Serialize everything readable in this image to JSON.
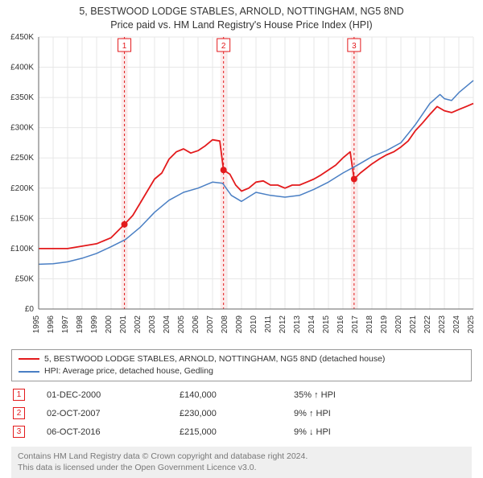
{
  "title": {
    "line1": "5, BESTWOOD LODGE STABLES, ARNOLD, NOTTINGHAM, NG5 8ND",
    "line2": "Price paid vs. HM Land Registry's House Price Index (HPI)"
  },
  "chart": {
    "type": "line",
    "background_color": "#ffffff",
    "plot_bg": "#ffffff",
    "grid_color": "#e7e7e7",
    "axis_color": "#666666",
    "tick_color": "#333333",
    "tick_fontsize": 10,
    "x": {
      "min": 1995,
      "max": 2025,
      "ticks": [
        1995,
        1996,
        1997,
        1998,
        1999,
        2000,
        2001,
        2002,
        2003,
        2004,
        2005,
        2006,
        2007,
        2008,
        2009,
        2010,
        2011,
        2012,
        2013,
        2014,
        2015,
        2016,
        2017,
        2018,
        2019,
        2020,
        2021,
        2022,
        2023,
        2024,
        2025
      ]
    },
    "y": {
      "min": 0,
      "max": 450000,
      "ticks": [
        0,
        50000,
        100000,
        150000,
        200000,
        250000,
        300000,
        350000,
        400000,
        450000
      ],
      "tick_labels": [
        "£0",
        "£50K",
        "£100K",
        "£150K",
        "£200K",
        "£250K",
        "£300K",
        "£350K",
        "£400K",
        "£450K"
      ]
    },
    "series": [
      {
        "name": "red",
        "color": "#e31a1c",
        "width": 1.8,
        "points": [
          [
            1995,
            100000
          ],
          [
            1996,
            100000
          ],
          [
            1997,
            100000
          ],
          [
            1998,
            104000
          ],
          [
            1999,
            108000
          ],
          [
            2000,
            118000
          ],
          [
            2000.92,
            140000
          ],
          [
            2001.5,
            155000
          ],
          [
            2002,
            175000
          ],
          [
            2002.5,
            195000
          ],
          [
            2003,
            215000
          ],
          [
            2003.5,
            225000
          ],
          [
            2004,
            248000
          ],
          [
            2004.5,
            260000
          ],
          [
            2005,
            265000
          ],
          [
            2005.5,
            258000
          ],
          [
            2006,
            262000
          ],
          [
            2006.5,
            270000
          ],
          [
            2007,
            280000
          ],
          [
            2007.5,
            278000
          ],
          [
            2007.76,
            230000
          ],
          [
            2008.2,
            223000
          ],
          [
            2008.6,
            205000
          ],
          [
            2009,
            195000
          ],
          [
            2009.5,
            200000
          ],
          [
            2010,
            210000
          ],
          [
            2010.5,
            212000
          ],
          [
            2011,
            205000
          ],
          [
            2011.5,
            205000
          ],
          [
            2012,
            200000
          ],
          [
            2012.5,
            205000
          ],
          [
            2013,
            205000
          ],
          [
            2013.5,
            210000
          ],
          [
            2014,
            215000
          ],
          [
            2014.5,
            222000
          ],
          [
            2015,
            230000
          ],
          [
            2015.5,
            238000
          ],
          [
            2016,
            250000
          ],
          [
            2016.5,
            260000
          ],
          [
            2016.77,
            215000
          ],
          [
            2017.2,
            225000
          ],
          [
            2018,
            240000
          ],
          [
            2018.5,
            248000
          ],
          [
            2019,
            255000
          ],
          [
            2019.5,
            260000
          ],
          [
            2020,
            268000
          ],
          [
            2020.5,
            278000
          ],
          [
            2021,
            295000
          ],
          [
            2021.5,
            308000
          ],
          [
            2022,
            322000
          ],
          [
            2022.5,
            335000
          ],
          [
            2023,
            328000
          ],
          [
            2023.5,
            325000
          ],
          [
            2024,
            330000
          ],
          [
            2024.5,
            335000
          ],
          [
            2025,
            340000
          ]
        ]
      },
      {
        "name": "blue",
        "color": "#4a7fc4",
        "width": 1.5,
        "points": [
          [
            1995,
            74000
          ],
          [
            1996,
            75000
          ],
          [
            1997,
            78000
          ],
          [
            1998,
            84000
          ],
          [
            1999,
            92000
          ],
          [
            2000,
            103000
          ],
          [
            2001,
            115000
          ],
          [
            2002,
            135000
          ],
          [
            2003,
            160000
          ],
          [
            2004,
            180000
          ],
          [
            2005,
            193000
          ],
          [
            2006,
            200000
          ],
          [
            2007,
            210000
          ],
          [
            2007.7,
            208000
          ],
          [
            2008.3,
            188000
          ],
          [
            2009,
            178000
          ],
          [
            2010,
            193000
          ],
          [
            2011,
            188000
          ],
          [
            2012,
            185000
          ],
          [
            2013,
            188000
          ],
          [
            2014,
            198000
          ],
          [
            2015,
            210000
          ],
          [
            2016,
            225000
          ],
          [
            2017,
            238000
          ],
          [
            2018,
            252000
          ],
          [
            2019,
            262000
          ],
          [
            2020,
            275000
          ],
          [
            2021,
            305000
          ],
          [
            2022,
            340000
          ],
          [
            2022.7,
            355000
          ],
          [
            2023,
            348000
          ],
          [
            2023.5,
            345000
          ],
          [
            2024,
            358000
          ],
          [
            2024.5,
            368000
          ],
          [
            2025,
            378000
          ]
        ]
      }
    ],
    "markers": [
      {
        "n": 1,
        "x": 2000.92,
        "y": 140000,
        "color": "#e31a1c",
        "band_color": "#fbe1e1"
      },
      {
        "n": 2,
        "x": 2007.76,
        "y": 230000,
        "color": "#e31a1c",
        "band_color": "#fbe1e1"
      },
      {
        "n": 3,
        "x": 2016.77,
        "y": 215000,
        "color": "#e31a1c",
        "band_color": "#fbe1e1"
      }
    ]
  },
  "legend": {
    "items": [
      {
        "color": "#e31a1c",
        "label": "5, BESTWOOD LODGE STABLES, ARNOLD, NOTTINGHAM, NG5 8ND (detached house)"
      },
      {
        "color": "#4a7fc4",
        "label": "HPI: Average price, detached house, Gedling"
      }
    ]
  },
  "transactions": [
    {
      "n": 1,
      "color": "#e31a1c",
      "date": "01-DEC-2000",
      "price": "£140,000",
      "delta": "35% ↑ HPI"
    },
    {
      "n": 2,
      "color": "#e31a1c",
      "date": "02-OCT-2007",
      "price": "£230,000",
      "delta": "9% ↑ HPI"
    },
    {
      "n": 3,
      "color": "#e31a1c",
      "date": "06-OCT-2016",
      "price": "£215,000",
      "delta": "9% ↓ HPI"
    }
  ],
  "attribution": {
    "line1": "Contains HM Land Registry data © Crown copyright and database right 2024.",
    "line2": "This data is licensed under the Open Government Licence v3.0."
  }
}
